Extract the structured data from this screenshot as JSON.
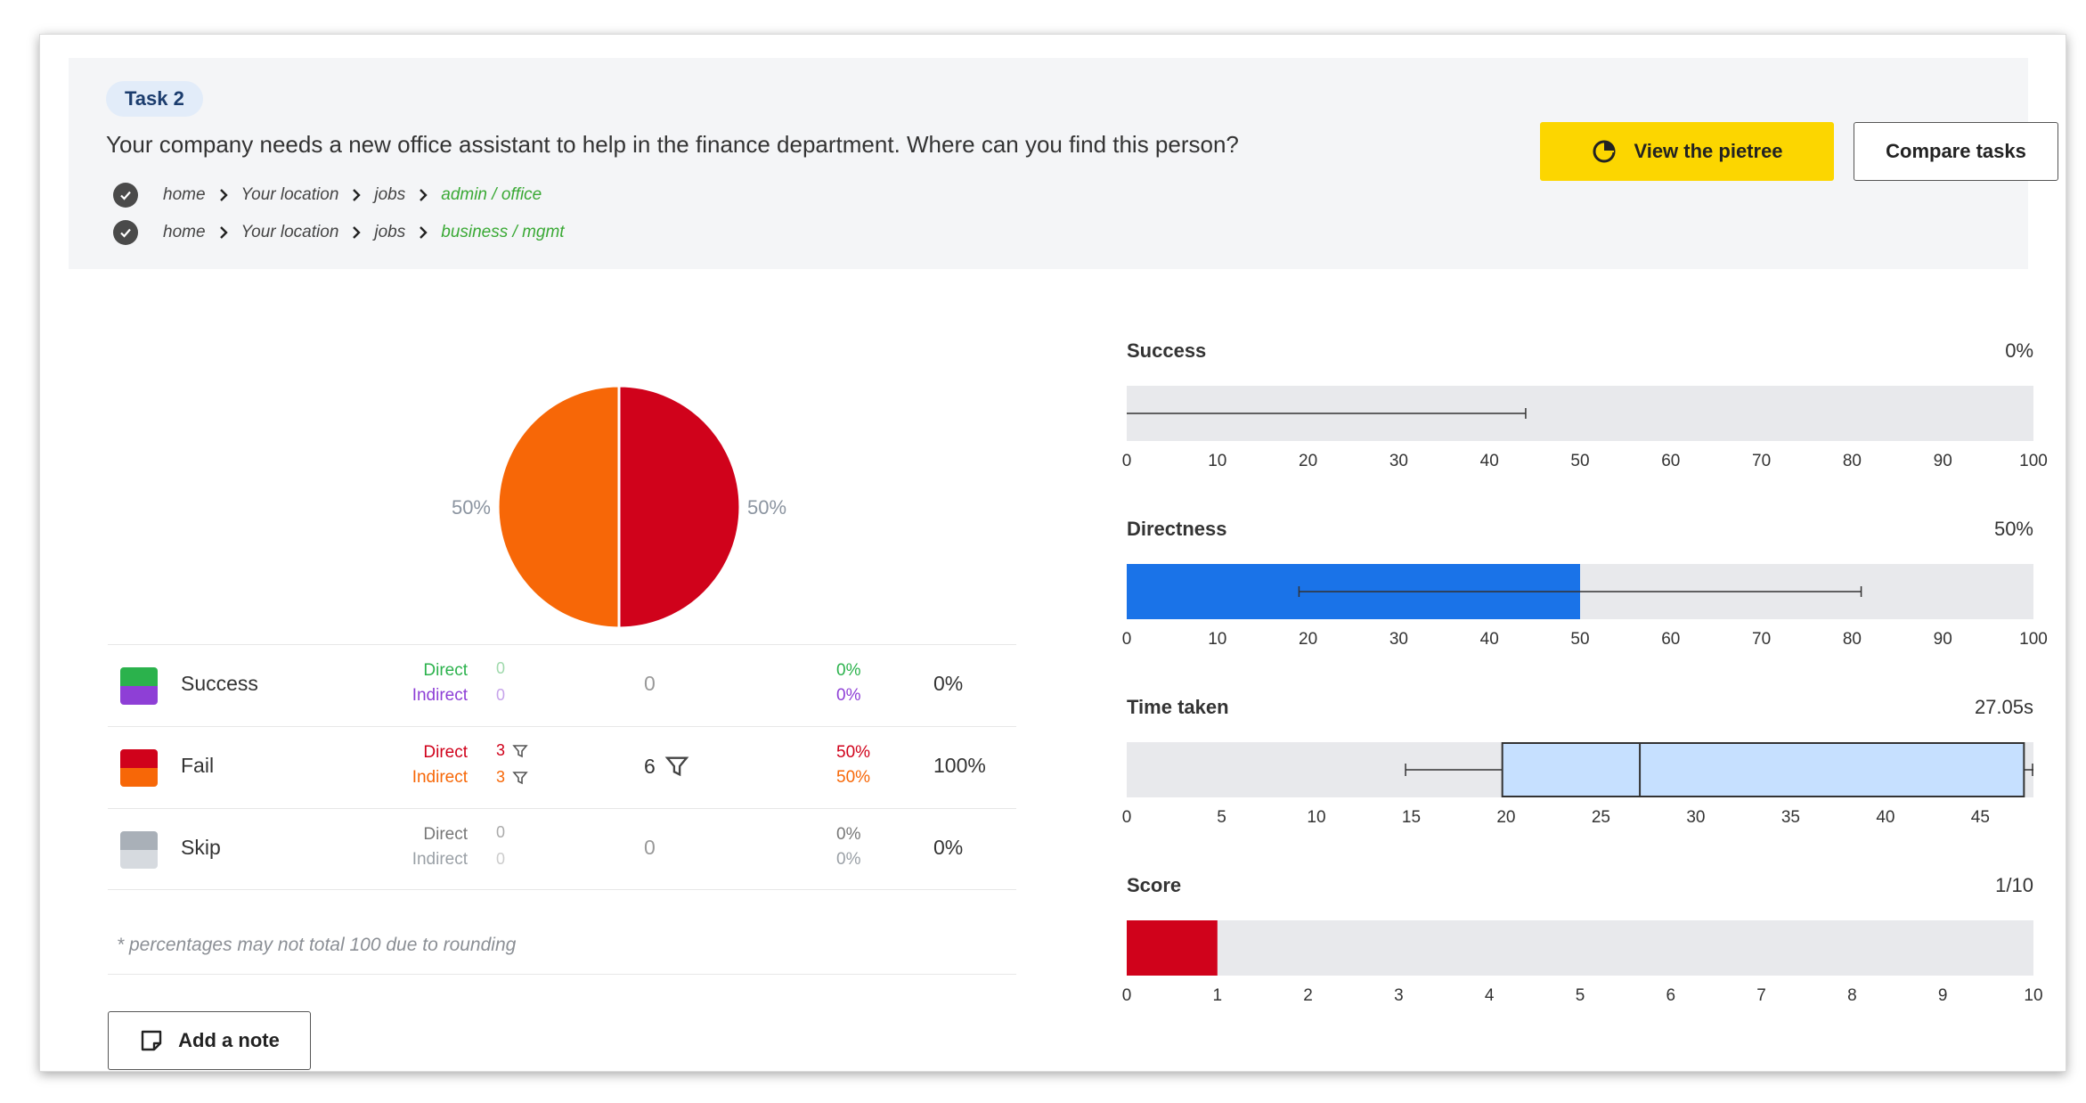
{
  "task": {
    "pill": "Task 2",
    "question": "Your company needs a new office assistant to help in the finance department. Where can you find this person?",
    "paths": [
      [
        "home",
        "Your location",
        "jobs",
        "admin / office"
      ],
      [
        "home",
        "Your location",
        "jobs",
        "business / mgmt"
      ]
    ]
  },
  "buttons": {
    "pietree": "View the pietree",
    "compare": "Compare tasks",
    "add_note": "Add a note"
  },
  "legend": {
    "rows": [
      {
        "label": "Success",
        "direct_label": "Direct",
        "indirect_label": "Indirect",
        "direct_count": "0",
        "indirect_count": "0",
        "total": "0",
        "direct_pct": "0%",
        "indirect_pct": "0%",
        "percent": "0%"
      },
      {
        "label": "Fail",
        "direct_label": "Direct",
        "indirect_label": "Indirect",
        "direct_count": "3",
        "indirect_count": "3",
        "total": "6",
        "direct_pct": "50%",
        "indirect_pct": "50%",
        "percent": "100%"
      },
      {
        "label": "Skip",
        "direct_label": "Direct",
        "indirect_label": "Indirect",
        "direct_count": "0",
        "indirect_count": "0",
        "total": "0",
        "direct_pct": "0%",
        "indirect_pct": "0%",
        "percent": "0%"
      }
    ],
    "note": "* percentages may not total 100 due to rounding"
  },
  "colors": {
    "success_direct": "#2bb24c",
    "success_indirect": "#8e3fd6",
    "fail_direct": "#d0021b",
    "fail_indirect": "#f76707",
    "skip_direct": "#a9b0b8",
    "skip_indirect": "#d6dadf",
    "directness_bar": "#1a73e8",
    "time_box": "#c6e0ff",
    "score_bar": "#d0021b",
    "track": "#e8e9ec",
    "accent_yellow": "#fcd600"
  },
  "chart_data": [
    {
      "type": "pie",
      "slices": [
        {
          "name": "Fail Direct",
          "value": 50,
          "label": "50%",
          "color": "#d0021b"
        },
        {
          "name": "Fail Indirect",
          "value": 50,
          "label": "50%",
          "color": "#f76707"
        }
      ]
    },
    {
      "type": "bar",
      "title": "Success",
      "value_label": "0%",
      "value": 0,
      "xlim": [
        0,
        100
      ],
      "ticks": [
        0,
        10,
        20,
        30,
        40,
        50,
        60,
        70,
        80,
        90,
        100
      ],
      "error_range": [
        0,
        44
      ]
    },
    {
      "type": "bar",
      "title": "Directness",
      "value_label": "50%",
      "value": 50,
      "xlim": [
        0,
        100
      ],
      "ticks": [
        0,
        10,
        20,
        30,
        40,
        50,
        60,
        70,
        80,
        90,
        100
      ],
      "error_range": [
        19,
        81
      ]
    },
    {
      "type": "boxplot",
      "title": "Time taken",
      "value_label": "27.05s",
      "median": 27.05,
      "q1": 19.8,
      "q3": 47.3,
      "whisker_low": 14.7,
      "whisker_high": 47.8,
      "xlim": [
        0,
        47.8
      ],
      "ticks": [
        0,
        5,
        10,
        15,
        20,
        25,
        30,
        35,
        40,
        45
      ]
    },
    {
      "type": "bar",
      "title": "Score",
      "value_label": "1/10",
      "value": 1,
      "xlim": [
        0,
        10
      ],
      "ticks": [
        0,
        1,
        2,
        3,
        4,
        5,
        6,
        7,
        8,
        9,
        10
      ]
    }
  ]
}
